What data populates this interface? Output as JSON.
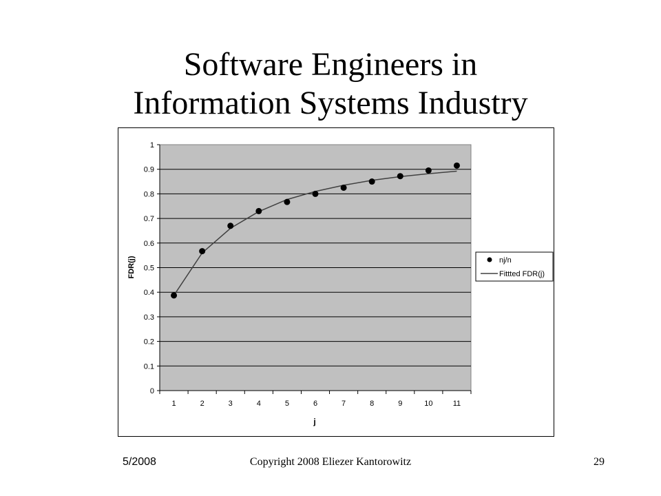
{
  "slide": {
    "title_line1": "Software Engineers in",
    "title_line2": "Information Systems Industry"
  },
  "footer": {
    "date": "5/2008",
    "copyright": "Copyright 2008 Eliezer Kantorowitz",
    "page_number": "29"
  },
  "chart_data": {
    "type": "scatter",
    "title": "",
    "xlabel": "j",
    "ylabel": "FDR(j)",
    "categories": [
      "1",
      "2",
      "3",
      "4",
      "5",
      "6",
      "7",
      "8",
      "9",
      "10",
      "11"
    ],
    "yticks": [
      "0",
      "0.1",
      "0.2",
      "0.3",
      "0.4",
      "0.5",
      "0.6",
      "0.7",
      "0.8",
      "0.9",
      "1"
    ],
    "ylim": [
      0,
      1
    ],
    "grid": true,
    "legend_position": "right",
    "plot_background": "#c0c0c0",
    "series": [
      {
        "name": "nj/n",
        "kind": "markers",
        "color": "#000000",
        "values": [
          0.387,
          0.567,
          0.67,
          0.73,
          0.767,
          0.8,
          0.825,
          0.85,
          0.872,
          0.895,
          0.915
        ]
      },
      {
        "name": "Fittted FDR(j)",
        "kind": "line",
        "color": "#404040",
        "values": [
          0.387,
          0.56,
          0.66,
          0.728,
          0.777,
          0.81,
          0.835,
          0.855,
          0.87,
          0.882,
          0.892
        ]
      }
    ]
  }
}
